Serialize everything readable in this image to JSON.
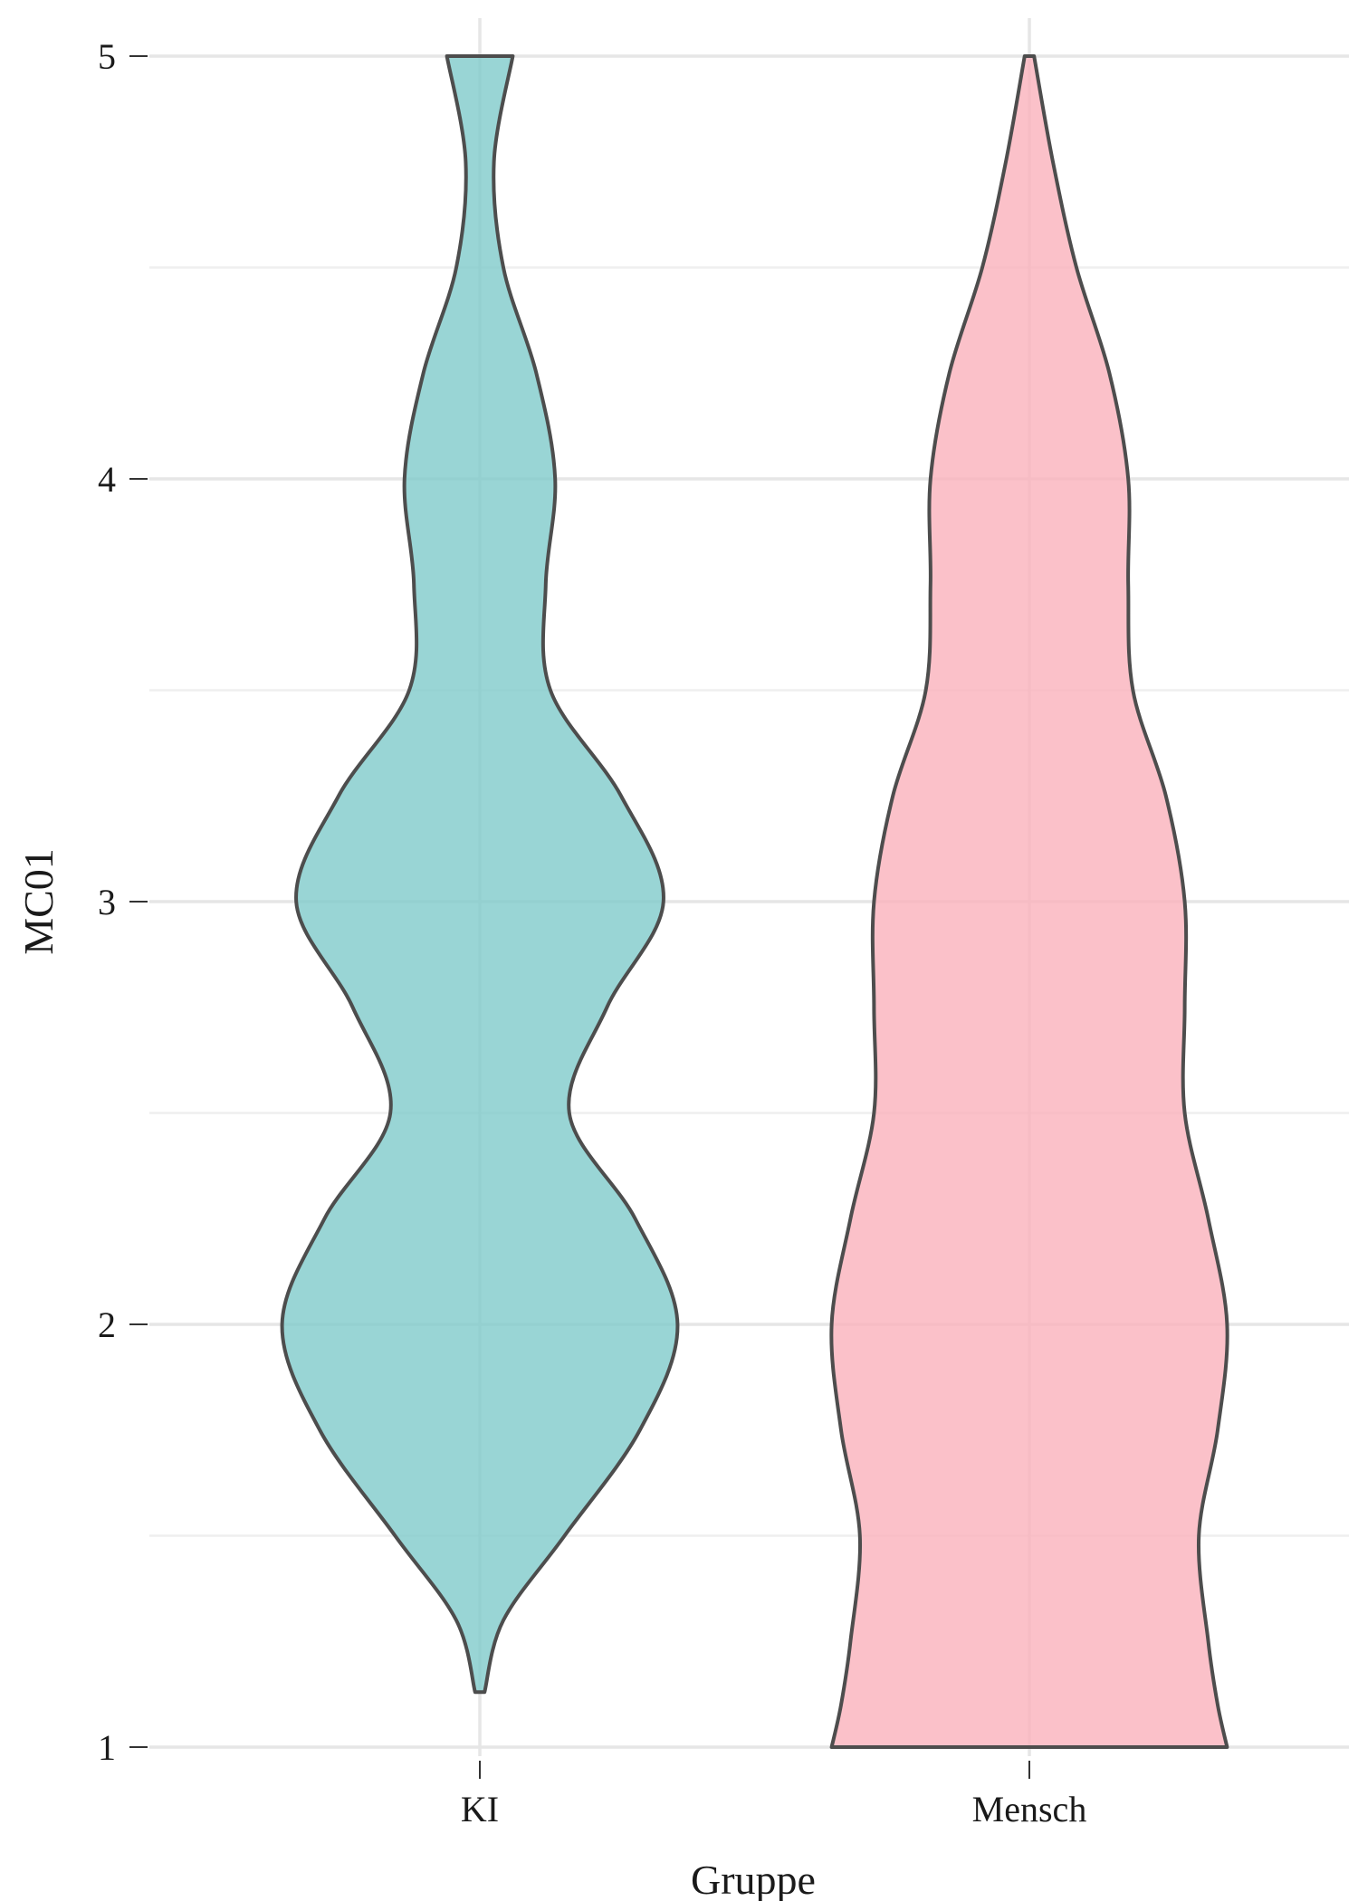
{
  "chart_data": {
    "type": "violin",
    "xlabel": "Gruppe",
    "ylabel": "MC01",
    "ylim": [
      1,
      5
    ],
    "yticks": [
      "1",
      "2",
      "3",
      "4",
      "5"
    ],
    "categories": [
      "KI",
      "Mensch"
    ],
    "grid": true,
    "series": [
      {
        "category": "KI",
        "color": "#7fcbcb",
        "y_range": [
          1.13,
          5.0
        ],
        "density_profile": [
          [
            1.13,
            0.01
          ],
          [
            1.3,
            0.05
          ],
          [
            1.5,
            0.18
          ],
          [
            1.75,
            0.34
          ],
          [
            2.0,
            0.42
          ],
          [
            2.25,
            0.33
          ],
          [
            2.5,
            0.19
          ],
          [
            2.75,
            0.27
          ],
          [
            3.0,
            0.39
          ],
          [
            3.25,
            0.3
          ],
          [
            3.5,
            0.15
          ],
          [
            3.75,
            0.14
          ],
          [
            4.0,
            0.16
          ],
          [
            4.25,
            0.12
          ],
          [
            4.5,
            0.05
          ],
          [
            4.75,
            0.03
          ],
          [
            5.0,
            0.07
          ]
        ]
      },
      {
        "category": "Mensch",
        "color": "#fab1bc",
        "y_range": [
          1.0,
          5.0
        ],
        "density_profile": [
          [
            1.0,
            0.42
          ],
          [
            1.1,
            0.4
          ],
          [
            1.25,
            0.38
          ],
          [
            1.5,
            0.36
          ],
          [
            1.75,
            0.4
          ],
          [
            2.0,
            0.42
          ],
          [
            2.25,
            0.38
          ],
          [
            2.5,
            0.33
          ],
          [
            2.75,
            0.33
          ],
          [
            3.0,
            0.33
          ],
          [
            3.25,
            0.29
          ],
          [
            3.5,
            0.22
          ],
          [
            3.75,
            0.21
          ],
          [
            4.0,
            0.21
          ],
          [
            4.25,
            0.17
          ],
          [
            4.5,
            0.1
          ],
          [
            4.75,
            0.05
          ],
          [
            5.0,
            0.01
          ]
        ]
      }
    ]
  }
}
